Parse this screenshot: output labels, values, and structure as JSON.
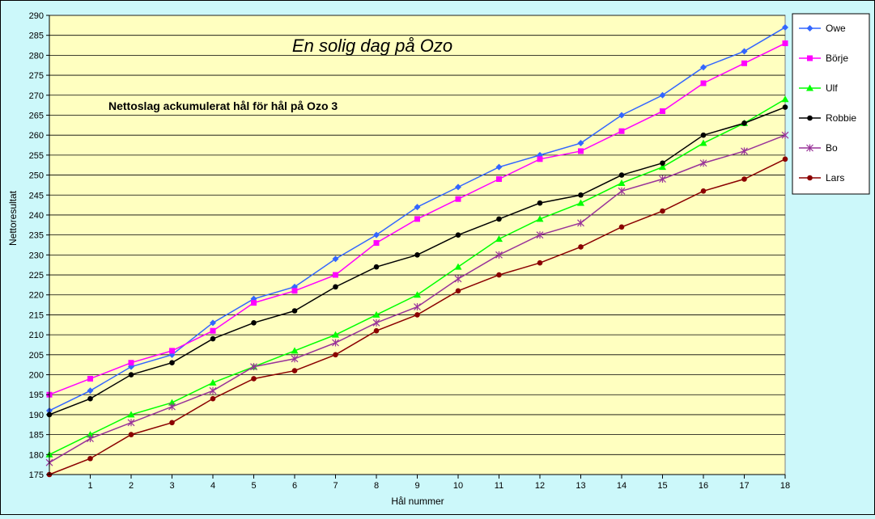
{
  "chart_data": {
    "type": "line",
    "title": "En solig dag på Ozo",
    "subtitle": "Nettoslag ackumulerat hål för hål på Ozo 3",
    "xlabel": "Hål nummer",
    "ylabel": "Nettoresultat",
    "x": [
      0,
      1,
      2,
      3,
      4,
      5,
      6,
      7,
      8,
      9,
      10,
      11,
      12,
      13,
      14,
      15,
      16,
      17,
      18
    ],
    "x_tick_labels": [
      "1",
      "2",
      "3",
      "4",
      "5",
      "6",
      "7",
      "8",
      "9",
      "10",
      "11",
      "12",
      "13",
      "14",
      "15",
      "16",
      "17",
      "18"
    ],
    "xlim": [
      0,
      18
    ],
    "ylim": [
      175,
      290
    ],
    "ytick_step": 5,
    "grid": true,
    "legend_position": "right",
    "plot_background": "#ffffc0",
    "series": [
      {
        "name": "Owe",
        "color": "#3366ff",
        "marker": "diamond",
        "values": [
          191,
          196,
          202,
          205,
          213,
          219,
          222,
          229,
          235,
          242,
          247,
          252,
          255,
          258,
          265,
          270,
          277,
          281,
          287
        ]
      },
      {
        "name": "Börje",
        "color": "#ff00ff",
        "marker": "square",
        "values": [
          195,
          199,
          203,
          206,
          211,
          218,
          221,
          225,
          233,
          239,
          244,
          249,
          254,
          256,
          261,
          266,
          273,
          278,
          283
        ]
      },
      {
        "name": "Ulf",
        "color": "#00ff00",
        "marker": "triangle",
        "values": [
          180,
          185,
          190,
          193,
          198,
          202,
          206,
          210,
          215,
          220,
          227,
          234,
          239,
          243,
          248,
          252,
          258,
          263,
          269
        ]
      },
      {
        "name": "Robbie",
        "color": "#000000",
        "marker": "circle",
        "values": [
          190,
          194,
          200,
          203,
          209,
          213,
          216,
          222,
          227,
          230,
          235,
          239,
          243,
          245,
          250,
          253,
          260,
          263,
          267
        ]
      },
      {
        "name": "Bo",
        "color": "#993399",
        "marker": "star",
        "values": [
          178,
          184,
          188,
          192,
          196,
          202,
          204,
          208,
          213,
          217,
          224,
          230,
          235,
          238,
          246,
          249,
          253,
          256,
          260
        ]
      },
      {
        "name": "Lars",
        "color": "#8b0000",
        "marker": "circle",
        "values": [
          175,
          179,
          185,
          188,
          194,
          199,
          201,
          205,
          211,
          215,
          221,
          225,
          228,
          232,
          237,
          241,
          246,
          249,
          254
        ]
      }
    ]
  }
}
